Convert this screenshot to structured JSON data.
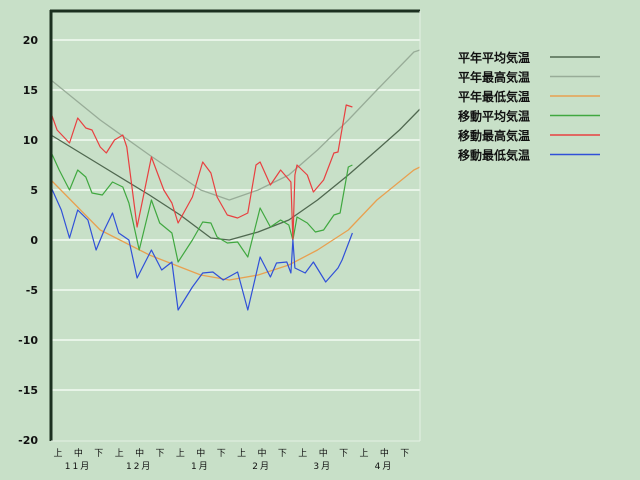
{
  "chart_data": {
    "type": "line",
    "title": "",
    "xlabel": "",
    "ylabel": "",
    "ylim": [
      -20,
      23
    ],
    "yticks": [
      20,
      15,
      10,
      5,
      0,
      -5,
      -10,
      -15,
      -20
    ],
    "ytick_labels": [
      "20",
      "15",
      "10",
      "5",
      "0",
      "-5",
      "-10",
      "-15",
      "-20"
    ],
    "grid": "horizontal",
    "legend_position": "right",
    "x_range": [
      "11-01",
      "04-30"
    ],
    "dekad_labels": [
      "上",
      "中",
      "下"
    ],
    "month_labels": [
      "11月",
      "12月",
      "1月",
      "2月",
      "3月",
      "4月"
    ],
    "series": [
      {
        "name": "平年平均気温",
        "color": "#506850",
        "x": [
          "11-01",
          "11-25",
          "12-19",
          "01-03",
          "01-18",
          "01-27",
          "02-10",
          "02-25",
          "03-11",
          "03-26",
          "04-09",
          "04-20",
          "04-30"
        ],
        "y": [
          10.5,
          7.5,
          4.5,
          2.5,
          0.2,
          0,
          0.8,
          2,
          4,
          6.5,
          9,
          11,
          13.1
        ]
      },
      {
        "name": "平年最高気温",
        "color": "#98ac98",
        "x": [
          "11-01",
          "11-25",
          "12-19",
          "01-13",
          "01-27",
          "02-10",
          "02-25",
          "03-11",
          "03-26",
          "04-09",
          "04-27",
          "04-30"
        ],
        "y": [
          16,
          12,
          8.5,
          5,
          4,
          5,
          6.5,
          9,
          12,
          15,
          18.8,
          19
        ]
      },
      {
        "name": "平年最低気温",
        "color": "#e8a050",
        "x": [
          "11-01",
          "11-25",
          "12-19",
          "01-13",
          "01-27",
          "02-10",
          "02-25",
          "03-11",
          "03-26",
          "04-09",
          "04-27",
          "04-30"
        ],
        "y": [
          6,
          1,
          -1.5,
          -3.5,
          -4,
          -3.5,
          -2.5,
          -1,
          1,
          4,
          7,
          7.3
        ]
      },
      {
        "name": "移動平均気温",
        "color": "#40a840",
        "x": [
          "11-01",
          "11-05",
          "11-10",
          "11-14",
          "11-18",
          "11-21",
          "11-26",
          "12-01",
          "12-06",
          "12-09",
          "12-14",
          "12-20",
          "12-24",
          "12-30",
          "01-02",
          "01-09",
          "01-14",
          "01-18",
          "01-21",
          "01-26",
          "01-31",
          "02-05",
          "02-11",
          "02-16",
          "02-21",
          "02-25",
          "02-27",
          "03-01",
          "03-06",
          "03-10",
          "03-14",
          "03-19",
          "03-22",
          "03-26",
          "03-28"
        ],
        "y": [
          8.8,
          7,
          5,
          7,
          6.3,
          4.7,
          4.5,
          5.8,
          5.3,
          3.7,
          -1,
          4,
          1.7,
          0.7,
          -2.2,
          0,
          1.8,
          1.7,
          0.3,
          -0.3,
          -0.2,
          -1.7,
          3.2,
          1.3,
          2,
          1.5,
          0,
          2.3,
          1.7,
          0.8,
          1,
          2.5,
          2.7,
          7.3,
          7.5
        ]
      },
      {
        "name": "移動最高気温",
        "color": "#e84040",
        "x": [
          "11-01",
          "11-04",
          "11-10",
          "11-14",
          "11-18",
          "11-21",
          "11-25",
          "11-28",
          "12-02",
          "12-06",
          "12-08",
          "12-13",
          "12-20",
          "12-26",
          "12-30",
          "01-02",
          "01-09",
          "01-14",
          "01-18",
          "01-21",
          "01-26",
          "01-31",
          "02-05",
          "02-09",
          "02-11",
          "02-16",
          "02-21",
          "02-26",
          "02-27",
          "02-28",
          "03-01",
          "03-06",
          "03-09",
          "03-14",
          "03-19",
          "03-21",
          "03-25",
          "03-28"
        ],
        "y": [
          12.7,
          11,
          9.7,
          12.2,
          11.2,
          11,
          9.3,
          8.7,
          10,
          10.5,
          9.3,
          1.3,
          8.3,
          5,
          3.7,
          1.7,
          4.3,
          7.8,
          6.7,
          4.3,
          2.5,
          2.2,
          2.7,
          7.5,
          7.8,
          5.5,
          7,
          5.8,
          0,
          6.5,
          7.5,
          6.5,
          4.8,
          6,
          8.7,
          8.8,
          13.5,
          13.3
        ]
      },
      {
        "name": "移動最低気温",
        "color": "#3050d8",
        "x": [
          "11-01",
          "11-06",
          "11-10",
          "11-14",
          "11-19",
          "11-23",
          "11-27",
          "12-01",
          "12-04",
          "12-09",
          "12-13",
          "12-20",
          "12-25",
          "12-30",
          "01-02",
          "01-09",
          "01-14",
          "01-19",
          "01-24",
          "01-31",
          "02-05",
          "02-11",
          "02-16",
          "02-19",
          "02-24",
          "02-26",
          "02-27",
          "02-28",
          "03-05",
          "03-09",
          "03-15",
          "03-21",
          "03-23",
          "03-28"
        ],
        "y": [
          5.3,
          3,
          0.2,
          3,
          2,
          -1,
          1,
          2.7,
          0.7,
          0,
          -3.8,
          -1,
          -3,
          -2.2,
          -7,
          -4.7,
          -3.3,
          -3.2,
          -4,
          -3.2,
          -7,
          -1.7,
          -3.7,
          -2.3,
          -2.2,
          -3.3,
          0,
          -2.8,
          -3.3,
          -2.2,
          -4.2,
          -2.8,
          -2,
          0.7
        ]
      }
    ]
  }
}
